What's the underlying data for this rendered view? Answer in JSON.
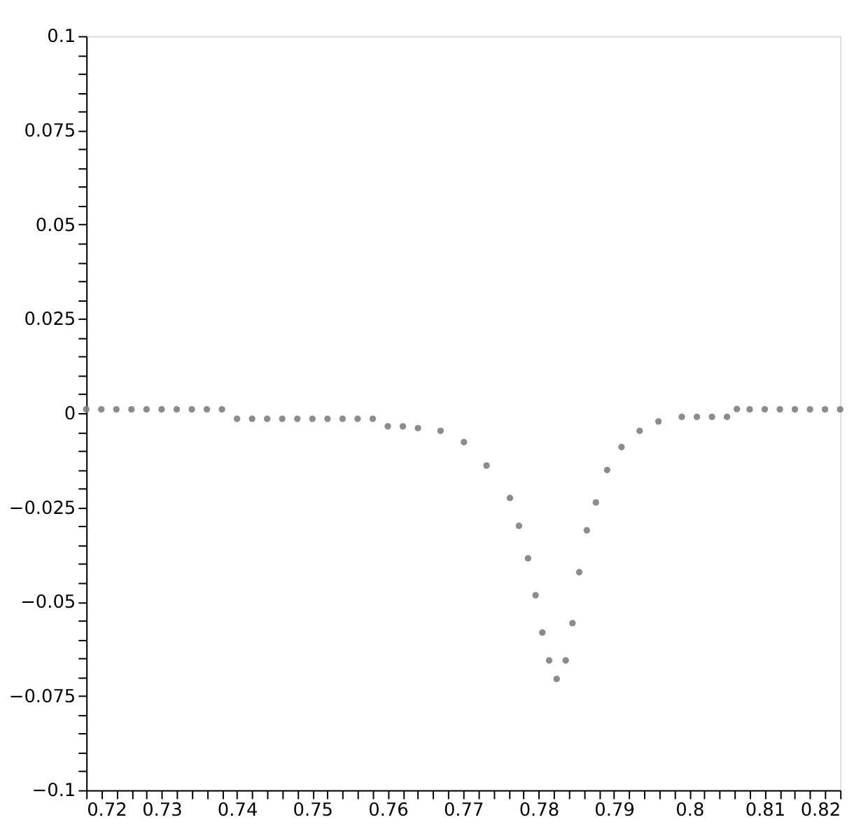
{
  "chart_data": {
    "type": "scatter",
    "marker": "circle",
    "grid": false,
    "series": [
      {
        "color": "#808080",
        "x": [
          0.72,
          0.722,
          0.724,
          0.726,
          0.728,
          0.73,
          0.732,
          0.734,
          0.736,
          0.738,
          0.74,
          0.742,
          0.744,
          0.746,
          0.748,
          0.75,
          0.752,
          0.754,
          0.756,
          0.758,
          0.76,
          0.762,
          0.764,
          0.767,
          0.7701,
          0.7731,
          0.7762,
          0.7774,
          0.7786,
          0.7796,
          0.7805,
          0.7814,
          0.7824,
          0.7836,
          0.7845,
          0.7854,
          0.7864,
          0.7876,
          0.7891,
          0.791,
          0.7934,
          0.7959,
          0.799,
          0.801,
          0.803,
          0.805,
          0.8063,
          0.808,
          0.81,
          0.812,
          0.814,
          0.816,
          0.818,
          0.82
        ],
        "values": [
          0.001,
          0.001,
          0.001,
          0.001,
          0.001,
          0.001,
          0.001,
          0.001,
          0.001,
          0.001,
          -0.0015,
          -0.0015,
          -0.0015,
          -0.0015,
          -0.0015,
          -0.0015,
          -0.0015,
          -0.0015,
          -0.0015,
          -0.0015,
          -0.0035,
          -0.0035,
          -0.004,
          -0.0047,
          -0.0077,
          -0.0139,
          -0.0225,
          -0.0299,
          -0.0385,
          -0.0483,
          -0.0582,
          -0.0656,
          -0.0705,
          -0.0656,
          -0.0557,
          -0.0422,
          -0.0311,
          -0.0237,
          -0.0151,
          -0.009,
          -0.0047,
          -0.0022,
          -0.001,
          -0.001,
          -0.001,
          -0.001,
          0.0011,
          0.001,
          0.001,
          0.001,
          0.001,
          0.001,
          0.001,
          0.001
        ]
      }
    ],
    "xlim": [
      0.72,
      0.82
    ],
    "xticks": [
      0.72,
      {
        "value": 0.722,
        "label": null
      },
      {
        "value": 0.724,
        "label": null
      },
      {
        "value": 0.726,
        "label": null
      },
      {
        "value": 0.728,
        "label": null
      },
      0.73,
      {
        "value": 0.732,
        "label": null
      },
      {
        "value": 0.734,
        "label": null
      },
      {
        "value": 0.736,
        "label": null
      },
      {
        "value": 0.738,
        "label": null
      },
      0.74,
      {
        "value": 0.742,
        "label": null
      },
      {
        "value": 0.744,
        "label": null
      },
      {
        "value": 0.746,
        "label": null
      },
      {
        "value": 0.748,
        "label": null
      },
      0.75,
      {
        "value": 0.752,
        "label": null
      },
      {
        "value": 0.754,
        "label": null
      },
      {
        "value": 0.756,
        "label": null
      },
      {
        "value": 0.758,
        "label": null
      },
      0.76,
      {
        "value": 0.762,
        "label": null
      },
      {
        "value": 0.764,
        "label": null
      },
      {
        "value": 0.766,
        "label": null
      },
      {
        "value": 0.768,
        "label": null
      },
      0.77,
      {
        "value": 0.772,
        "label": null
      },
      {
        "value": 0.774,
        "label": null
      },
      {
        "value": 0.776,
        "label": null
      },
      {
        "value": 0.778,
        "label": null
      },
      0.78,
      {
        "value": 0.782,
        "label": null
      },
      {
        "value": 0.784,
        "label": null
      },
      {
        "value": 0.786,
        "label": null
      },
      {
        "value": 0.788,
        "label": null
      },
      0.79,
      {
        "value": 0.792,
        "label": null
      },
      {
        "value": 0.794,
        "label": null
      },
      {
        "value": 0.796,
        "label": null
      },
      {
        "value": 0.798,
        "label": null
      },
      0.8,
      {
        "value": 0.802,
        "label": null
      },
      {
        "value": 0.804,
        "label": null
      },
      {
        "value": 0.806,
        "label": null
      },
      {
        "value": 0.808,
        "label": null
      },
      0.81,
      {
        "value": 0.812,
        "label": null
      },
      {
        "value": 0.814,
        "label": null
      },
      {
        "value": 0.816,
        "label": null
      },
      {
        "value": 0.818,
        "label": null
      },
      0.82
    ],
    "ylim": [
      -0.1,
      0.1
    ],
    "yticks": [
      {
        "value": -0.1,
        "label": "−0.1"
      },
      {
        "value": -0.095,
        "label": null
      },
      {
        "value": -0.09,
        "label": null
      },
      {
        "value": -0.085,
        "label": null
      },
      {
        "value": -0.08,
        "label": null
      },
      {
        "value": -0.075,
        "label": "−0.075"
      },
      {
        "value": -0.07,
        "label": null
      },
      {
        "value": -0.065,
        "label": null
      },
      {
        "value": -0.06,
        "label": null
      },
      {
        "value": -0.055,
        "label": null
      },
      {
        "value": -0.05,
        "label": "−0.05"
      },
      {
        "value": -0.045,
        "label": null
      },
      {
        "value": -0.04,
        "label": null
      },
      {
        "value": -0.035,
        "label": null
      },
      {
        "value": -0.03,
        "label": null
      },
      {
        "value": -0.025,
        "label": "−0.025"
      },
      {
        "value": -0.02,
        "label": null
      },
      {
        "value": -0.015,
        "label": null
      },
      {
        "value": -0.01,
        "label": null
      },
      {
        "value": -0.005,
        "label": null
      },
      0,
      {
        "value": 0.005,
        "label": null
      },
      {
        "value": 0.01,
        "label": null
      },
      {
        "value": 0.015,
        "label": null
      },
      {
        "value": 0.02,
        "label": null
      },
      0.025,
      {
        "value": 0.03,
        "label": null
      },
      {
        "value": 0.035,
        "label": null
      },
      {
        "value": 0.04,
        "label": null
      },
      {
        "value": 0.045,
        "label": null
      },
      0.05,
      {
        "value": 0.055,
        "label": null
      },
      {
        "value": 0.06,
        "label": null
      },
      {
        "value": 0.065,
        "label": null
      },
      {
        "value": 0.07,
        "label": null
      },
      0.075,
      {
        "value": 0.08,
        "label": null
      },
      {
        "value": 0.085,
        "label": null
      },
      {
        "value": 0.09,
        "label": null
      },
      {
        "value": 0.095,
        "label": null
      },
      0.1
    ]
  }
}
